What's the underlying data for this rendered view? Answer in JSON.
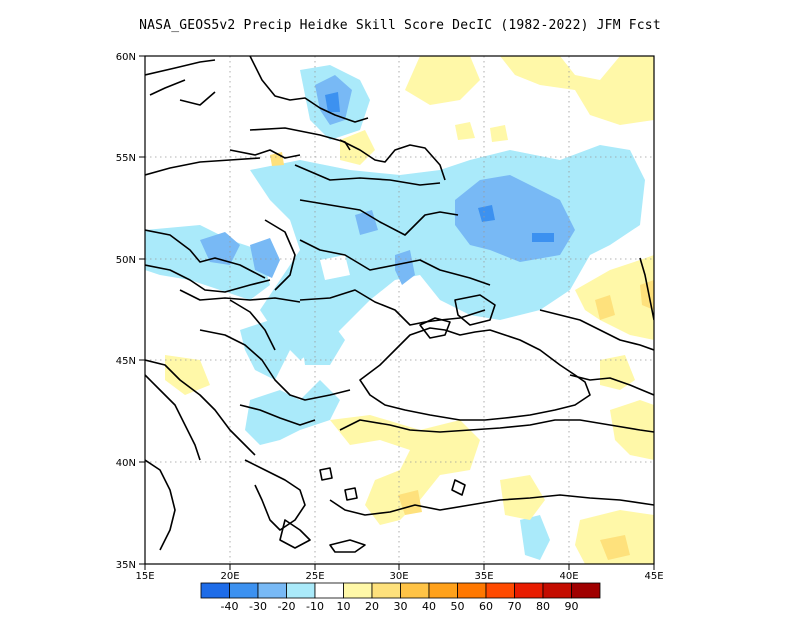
{
  "title": "NASA_GEOS5v2 Precip Heidke Skill Score DecIC (1982-2022) JFM Fcst",
  "map": {
    "lon_range": [
      15,
      45
    ],
    "lat_range": [
      35,
      60
    ],
    "lon_ticks": [
      "15E",
      "20E",
      "25E",
      "30E",
      "35E",
      "40E",
      "45E"
    ],
    "lat_ticks": [
      "35N",
      "40N",
      "45N",
      "50N",
      "55N",
      "60N"
    ],
    "grid": "dotted"
  },
  "colorbar": {
    "colors": [
      "#1e6ce8",
      "#3c91f0",
      "#78b9f5",
      "#aaeafa",
      "#ffffff",
      "#fff8a8",
      "#fee17c",
      "#ffc346",
      "#ffa11b",
      "#ff7800",
      "#ff4a00",
      "#e81c00",
      "#c40c00",
      "#a00000"
    ],
    "labels": [
      "-40",
      "-30",
      "-20",
      "-10",
      "10",
      "20",
      "30",
      "40",
      "50",
      "60",
      "70",
      "80",
      "90"
    ]
  }
}
